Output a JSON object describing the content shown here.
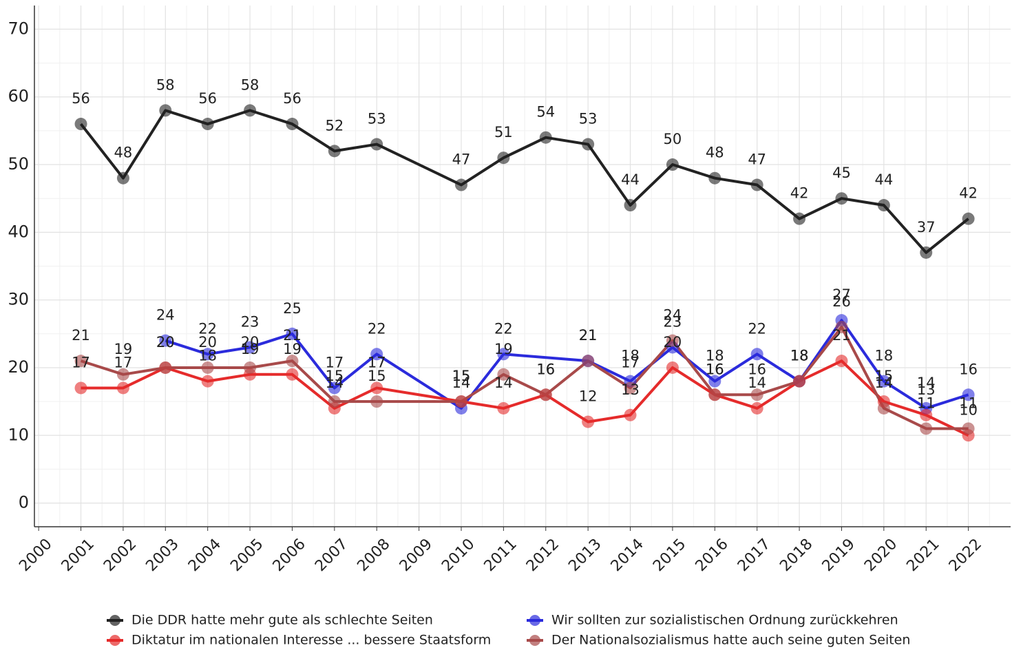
{
  "chart_data": {
    "type": "line",
    "x": [
      2001,
      2002,
      2003,
      2004,
      2005,
      2006,
      2007,
      2008,
      2010,
      2011,
      2012,
      2013,
      2014,
      2015,
      2016,
      2017,
      2018,
      2019,
      2020,
      2021,
      2022
    ],
    "xlim": [
      1999.9,
      2023
    ],
    "xticks": [
      2000,
      2001,
      2002,
      2003,
      2004,
      2005,
      2006,
      2007,
      2008,
      2009,
      2010,
      2011,
      2012,
      2013,
      2014,
      2015,
      2016,
      2017,
      2018,
      2019,
      2020,
      2021,
      2022
    ],
    "ylim": [
      -3.5,
      73.5
    ],
    "yticks": [
      0,
      10,
      20,
      30,
      40,
      50,
      60,
      70
    ],
    "grid": true,
    "legend": "bottom",
    "series": [
      {
        "name": "Die DDR hatte mehr gute als schlechte Seiten",
        "color": "#222222",
        "values": [
          56,
          48,
          58,
          56,
          58,
          56,
          52,
          53,
          47,
          51,
          54,
          53,
          44,
          50,
          48,
          47,
          42,
          45,
          44,
          37,
          42
        ]
      },
      {
        "name": "Wir sollten zur sozialistischen Ordnung zurückkehren",
        "color": "#2b2bdc",
        "x": [
          2003,
          2004,
          2005,
          2006,
          2007,
          2008,
          2010,
          2011,
          2013,
          2014,
          2015,
          2016,
          2017,
          2018,
          2019,
          2020,
          2021,
          2022
        ],
        "values": [
          24,
          22,
          23,
          25,
          17,
          22,
          14,
          22,
          21,
          18,
          23,
          18,
          22,
          18,
          27,
          18,
          14,
          16
        ]
      },
      {
        "name": "Diktatur im nationalen Interesse ... bessere Staatsform",
        "color": "#e52b2b",
        "values": [
          17,
          17,
          20,
          18,
          19,
          19,
          14,
          17,
          15,
          14,
          16,
          12,
          13,
          20,
          16,
          14,
          18,
          21,
          15,
          13,
          10
        ]
      },
      {
        "name": "Der Nationalsozialismus hatte auch seine guten Seiten",
        "color": "#a84a4a",
        "values": [
          21,
          19,
          20,
          20,
          20,
          21,
          15,
          15,
          15,
          19,
          16,
          21,
          17,
          24,
          16,
          16,
          18,
          26,
          14,
          11,
          11
        ]
      }
    ]
  }
}
